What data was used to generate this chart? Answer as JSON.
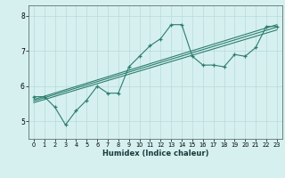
{
  "xlabel": "Humidex (Indice chaleur)",
  "background_color": "#d6f0f0",
  "line_color": "#2d7d6e",
  "grid_color": "#b8dada",
  "xlim": [
    -0.5,
    23.5
  ],
  "ylim": [
    4.5,
    8.3
  ],
  "xticks": [
    0,
    1,
    2,
    3,
    4,
    5,
    6,
    7,
    8,
    9,
    10,
    11,
    12,
    13,
    14,
    15,
    16,
    17,
    18,
    19,
    20,
    21,
    22,
    23
  ],
  "yticks": [
    5,
    6,
    7,
    8
  ],
  "lines": [
    {
      "x": [
        0,
        1,
        2,
        3,
        4,
        5,
        6,
        7,
        8,
        9,
        10,
        11,
        12,
        13,
        14,
        15,
        16,
        17,
        18,
        19,
        20,
        21,
        22,
        23
      ],
      "y": [
        5.7,
        5.7,
        5.4,
        4.9,
        5.3,
        5.6,
        6.0,
        5.8,
        5.8,
        6.55,
        6.85,
        7.15,
        7.35,
        7.75,
        7.75,
        6.85,
        6.6,
        6.6,
        6.55,
        6.9,
        6.85,
        7.1,
        7.7,
        7.7
      ]
    },
    {
      "x": [
        0,
        23
      ],
      "y": [
        5.62,
        7.75
      ]
    },
    {
      "x": [
        0,
        23
      ],
      "y": [
        5.58,
        7.68
      ]
    },
    {
      "x": [
        0,
        23
      ],
      "y": [
        5.53,
        7.6
      ]
    }
  ]
}
